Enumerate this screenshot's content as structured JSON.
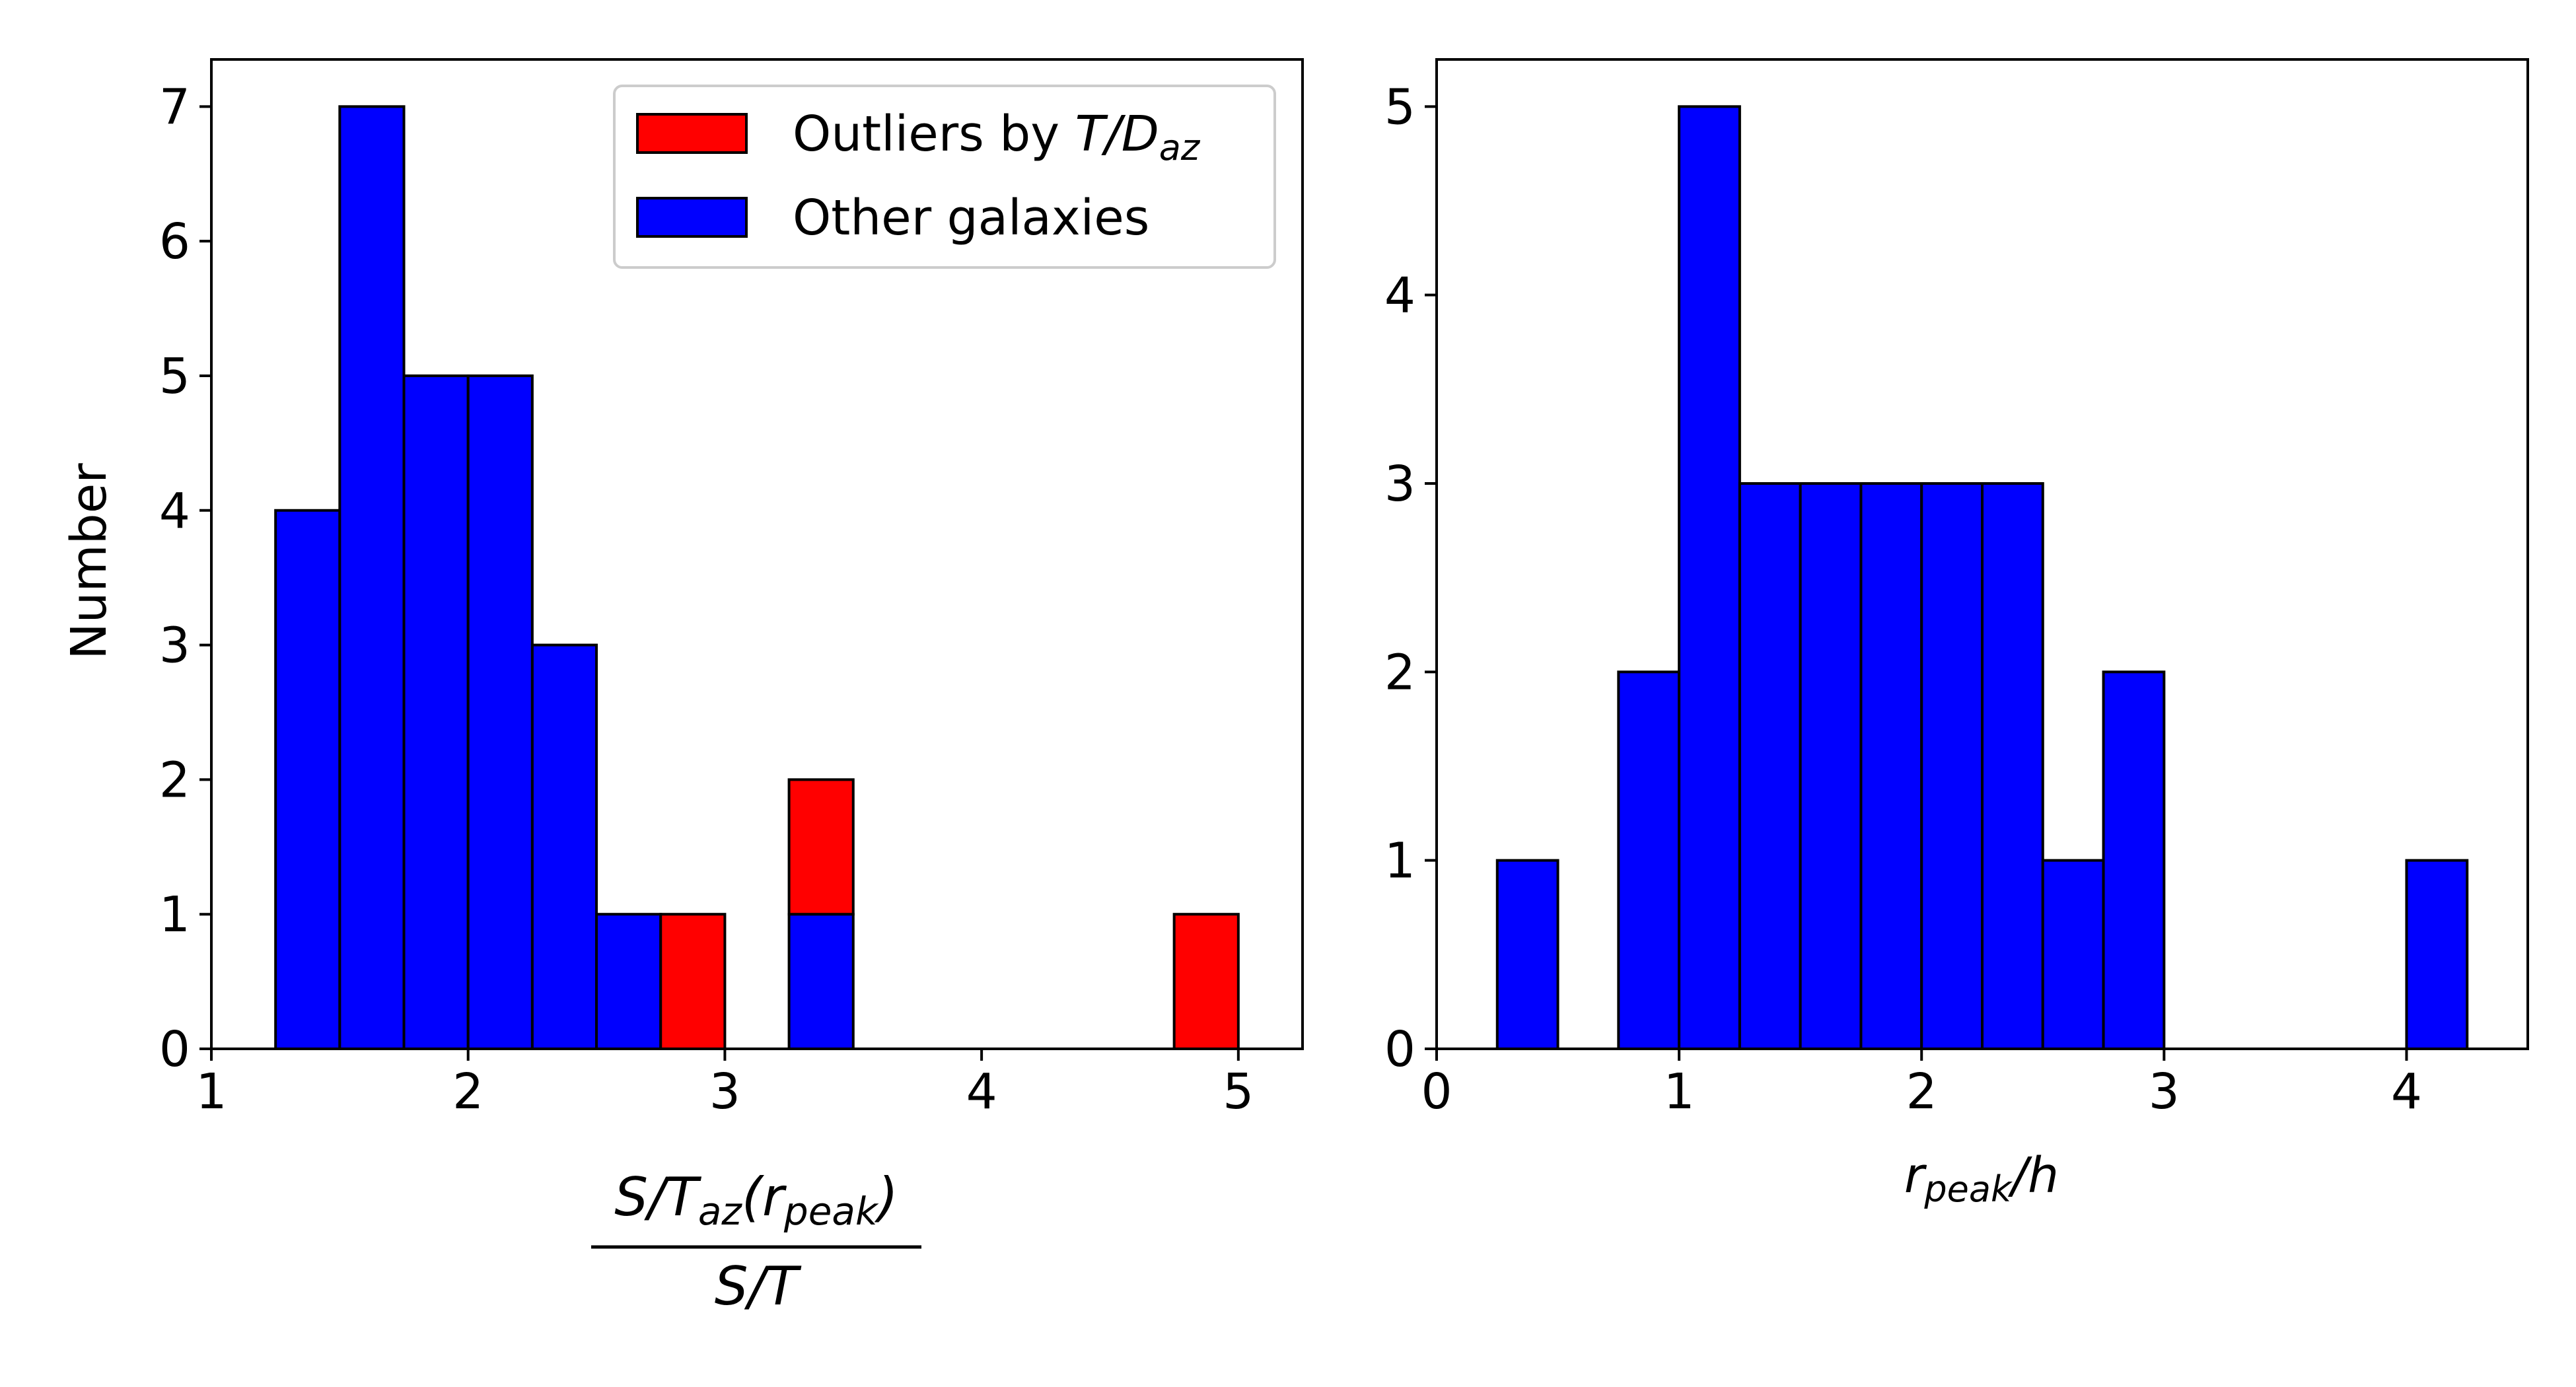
{
  "figure": {
    "ylabel": "Number"
  },
  "chart_data": [
    {
      "type": "bar",
      "kind": "stacked-histogram",
      "bin_edges": [
        1.25,
        1.5,
        1.75,
        2.0,
        2.25,
        2.5,
        2.75,
        3.0,
        3.25,
        3.5,
        3.75,
        4.0,
        4.25,
        4.5,
        4.75,
        5.0
      ],
      "series": [
        {
          "name": "Other galaxies",
          "color": "#0000ff",
          "values": [
            4,
            7,
            5,
            5,
            3,
            1,
            0,
            0,
            1,
            0,
            0,
            0,
            0,
            0,
            0
          ]
        },
        {
          "name": "Outliers by T/Daz",
          "color": "#ff0000",
          "values": [
            0,
            0,
            0,
            0,
            0,
            0,
            1,
            0,
            1,
            0,
            0,
            0,
            0,
            0,
            1
          ]
        }
      ],
      "xlim": [
        1,
        5.25
      ],
      "ylim": [
        0,
        7.35
      ],
      "xticks": [
        1,
        2,
        3,
        4,
        5
      ],
      "yticks": [
        0,
        1,
        2,
        3,
        4,
        5,
        6,
        7
      ],
      "xlabel_numerator": "S/Taz(rpeak)",
      "xlabel_denominator": "S/T",
      "ylabel": "Number",
      "legend": {
        "placement": "top-right",
        "entries": [
          {
            "label": "Outliers by T/Daz",
            "color": "#ff0000"
          },
          {
            "label": "Other galaxies",
            "color": "#0000ff"
          }
        ]
      },
      "grid": false
    },
    {
      "type": "bar",
      "kind": "histogram",
      "bin_edges": [
        0.25,
        0.5,
        0.75,
        1.0,
        1.25,
        1.5,
        1.75,
        2.0,
        2.25,
        2.5,
        2.75,
        3.0,
        3.25,
        3.5,
        3.75,
        4.0,
        4.25
      ],
      "series": [
        {
          "name": "",
          "color": "#0000ff",
          "values": [
            1,
            0,
            2,
            5,
            3,
            3,
            3,
            3,
            3,
            1,
            2,
            0,
            0,
            0,
            0,
            1
          ]
        }
      ],
      "xlim": [
        0,
        4.5
      ],
      "ylim": [
        0,
        5.25
      ],
      "xticks": [
        0,
        1,
        2,
        3,
        4
      ],
      "yticks": [
        0,
        1,
        2,
        3,
        4,
        5
      ],
      "xlabel": "rpeak/h",
      "grid": false
    }
  ]
}
